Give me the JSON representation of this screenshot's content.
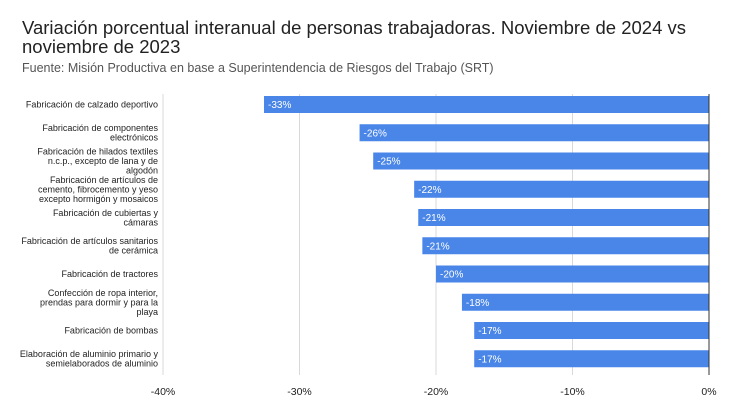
{
  "chart_data": {
    "type": "bar",
    "orientation": "horizontal",
    "title": "Variación porcentual interanual de personas trabajadoras. Noviembre de 2024 vs noviembre de 2023",
    "subtitle": "Fuente: Misión Productiva en base a Superintendencia de Riesgos del Trabajo (SRT)",
    "categories": [
      [
        "Fabricación de calzado deportivo"
      ],
      [
        "Fabricación de componentes",
        "electrónicos"
      ],
      [
        "Fabricación de hilados textiles",
        "n.c.p., excepto de lana  y de",
        "algodón"
      ],
      [
        "Fabricación de artículos de",
        "cemento, fibrocemento y yeso",
        "excepto hormigón y mosaicos"
      ],
      [
        "Fabricación de cubiertas y",
        "cámaras"
      ],
      [
        "Fabricación de artículos sanitarios",
        "de cerámica"
      ],
      [
        "Fabricación de tractores"
      ],
      [
        "Confección de ropa interior,",
        "prendas para dormir y para la",
        "playa"
      ],
      [
        "Fabricación de bombas"
      ],
      [
        "Elaboración de aluminio primario y",
        "semielaborados de aluminio"
      ]
    ],
    "values": [
      -32.6,
      -25.6,
      -24.6,
      -21.6,
      -21.3,
      -21.0,
      -20.0,
      -18.1,
      -17.2,
      -17.2
    ],
    "data_labels": [
      "-33%",
      "-26%",
      "-25%",
      "-22%",
      "-21%",
      "-21%",
      "-20%",
      "-18%",
      "-17%",
      "-17%"
    ],
    "xlim": [
      -40,
      0
    ],
    "xticks": [
      -40,
      -30,
      -20,
      -10,
      0
    ],
    "xtick_labels": [
      "-40%",
      "-30%",
      "-20%",
      "-10%",
      "0%"
    ],
    "grid": true,
    "bar_color": "#4a86e8",
    "xlabel": "",
    "ylabel": ""
  }
}
